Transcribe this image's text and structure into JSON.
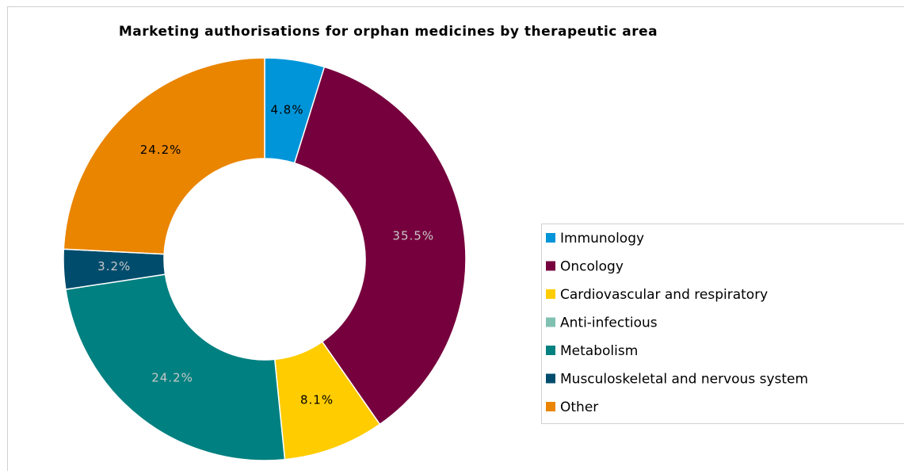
{
  "chart_data": {
    "type": "donut",
    "title": "Marketing authorisations for orphan medicines by therapeutic area",
    "categories": [
      "Immunology",
      "Oncology",
      "Cardiovascular and respiratory",
      "Anti-infectious",
      "Metabolism",
      "Musculoskeletal and nervous system",
      "Other"
    ],
    "values": [
      4.8,
      35.5,
      8.1,
      0,
      24.2,
      3.2,
      24.2
    ],
    "value_labels": [
      "4.8%",
      "35.5%",
      "8.1%",
      null,
      "24.2%",
      "3.2%",
      "24.2%"
    ],
    "colors": [
      "#0095d9",
      "#76003d",
      "#ffcc00",
      "#80c0b0",
      "#008080",
      "#004c6c",
      "#ea8500"
    ],
    "legend": "right"
  }
}
